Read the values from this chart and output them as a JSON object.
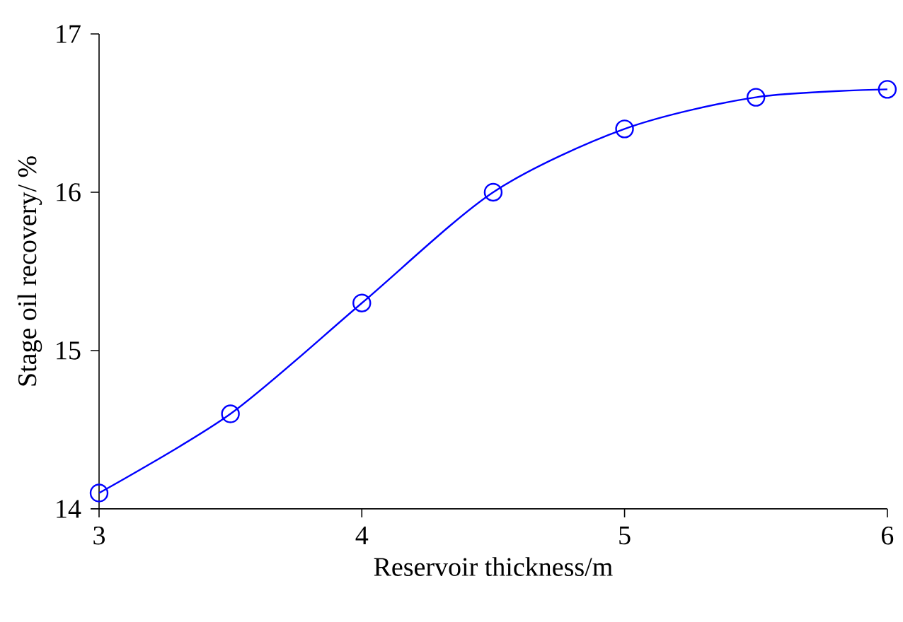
{
  "chart_data": {
    "type": "line",
    "xlabel": "Reservoir thickness/m",
    "ylabel": "Stage oil recovery/ %",
    "x": [
      3,
      3.5,
      4,
      4.5,
      5,
      5.5,
      6
    ],
    "series": [
      {
        "color": "#0000ff",
        "values": [
          14.1,
          14.6,
          15.3,
          16.0,
          16.4,
          16.6,
          16.65
        ]
      }
    ],
    "xlim": [
      3,
      6
    ],
    "ylim": [
      14,
      17
    ],
    "xticks": [
      3,
      4,
      5,
      6
    ],
    "yticks": [
      14,
      15,
      16,
      17
    ],
    "marker": "circle",
    "line_style": "solid"
  }
}
